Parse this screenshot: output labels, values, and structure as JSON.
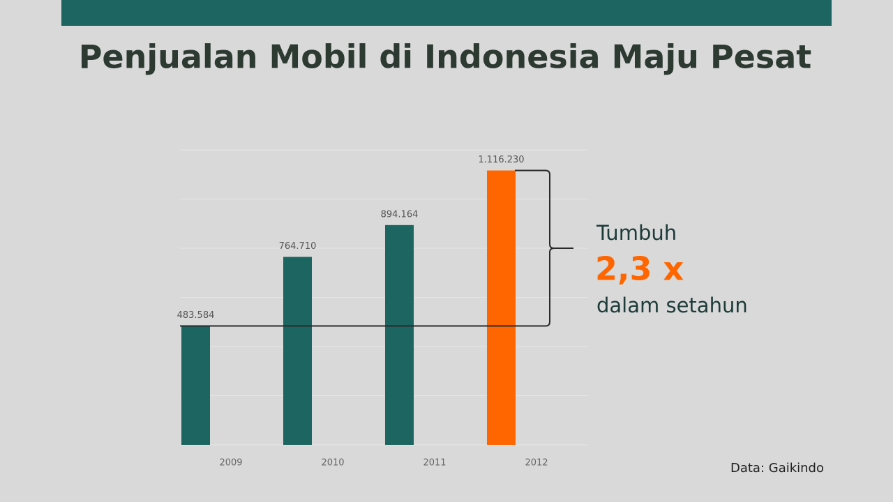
{
  "chart_data": {
    "type": "bar",
    "title": "Penjualan Mobil di Indonesia Maju Pesat",
    "categories": [
      "2009",
      "2010",
      "2011",
      "2012"
    ],
    "values": [
      483584,
      764710,
      894164,
      1116230
    ],
    "value_labels": [
      "483.584",
      "764.710",
      "894.164",
      "1.116.230"
    ],
    "colors": [
      "#1c6560",
      "#1c6560",
      "#1c6560",
      "#ff6600"
    ],
    "ylim": [
      0,
      1200000
    ],
    "yticks": [
      0,
      200000,
      400000,
      600000,
      800000,
      1000000,
      1200000
    ],
    "grid": true,
    "annotation": {
      "line1": "Tumbuh",
      "highlight": "2,3 x",
      "line2": "dalam setahun"
    },
    "source": "Data: Gaikindo"
  }
}
